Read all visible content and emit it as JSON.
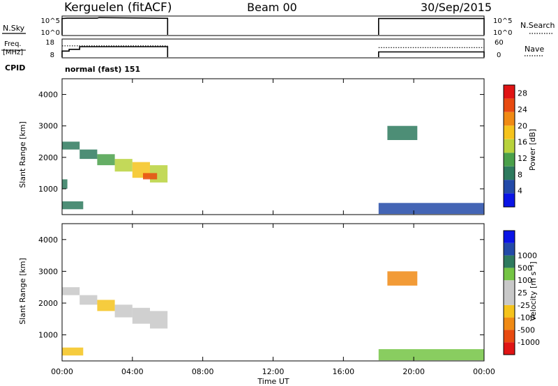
{
  "header": {
    "radar": "Kerguelen (fitACF)",
    "beam": "Beam 00",
    "date": "30/Sep/2015"
  },
  "sky_panel": {
    "left_label": "N.Sky",
    "right_label": "N.Search",
    "left_ticks": [
      "10^5",
      "10^0"
    ],
    "right_ticks": [
      "10^5",
      "10^0"
    ]
  },
  "freq_panel": {
    "left_label_1": "Freq.",
    "left_label_2": "[MHz]",
    "right_label": "Nave",
    "left_ticks": [
      "18",
      "8"
    ],
    "right_ticks": [
      "60",
      "0"
    ]
  },
  "cpid": {
    "label": "CPID",
    "value": "normal (fast) 151"
  },
  "colors": {
    "power_scale": [
      "#0a14e6",
      "#234aa8",
      "#2e7a5e",
      "#4aa04a",
      "#b8d23c",
      "#f5c31c",
      "#f08a14",
      "#e84a10",
      "#e01414"
    ],
    "velocity_scale": [
      "#e01414",
      "#e84a10",
      "#f08a14",
      "#f5c31c",
      "#c8c8c8",
      "#c8c8c8",
      "#74c444",
      "#2e7a5e",
      "#234aa8",
      "#0a14e6"
    ]
  },
  "chart_data": [
    {
      "type": "line",
      "panel": "sky",
      "x_unit": "hours UT",
      "segments": [
        {
          "x": [
            0.0,
            0.3,
            2.0,
            2.1,
            6.0
          ],
          "y": [
            4.5,
            4.6,
            4.6,
            4.75,
            4.55
          ]
        },
        {
          "x": [
            18.0,
            24.0
          ],
          "y": [
            4.5,
            4.5
          ]
        }
      ],
      "ylim": [
        0,
        5
      ]
    },
    {
      "type": "line",
      "panel": "freq",
      "x_unit": "hours UT",
      "series": [
        {
          "name": "",
          "segments": [
            {
              "x": [
                0.0,
                0.4,
                0.4,
                1.0,
                1.0,
                6.0
              ],
              "y": [
                11.5,
                11.5,
                12.5,
                12.5,
                14.0,
                14.0
              ]
            },
            {
              "x": [
                18.0,
                24.0
              ],
              "y": [
                11.0,
                11.0
              ]
            }
          ]
        },
        {
          "name": "",
          "style": "dotted",
          "segments": [
            {
              "x": [
                0.0,
                6.0
              ],
              "y": [
                14.5,
                14.5
              ]
            },
            {
              "x": [
                18.0,
                24.0
              ],
              "y": [
                13.5,
                13.5
              ]
            }
          ]
        }
      ],
      "ylim": [
        8,
        18
      ]
    },
    {
      "type": "heatmap",
      "panel": "power",
      "ylabel": "Slant Range [km]",
      "yticks": [
        "1000",
        "2000",
        "3000",
        "4000"
      ],
      "ylim": [
        180,
        4500
      ],
      "colorbar_label": "Power [dB]",
      "colorbar_ticks": [
        "4",
        "8",
        "12",
        "16",
        "20",
        "24",
        "28"
      ],
      "colorbar_range": [
        0,
        30
      ],
      "regions": [
        {
          "t": [
            0.0,
            1.0
          ],
          "r": [
            2250,
            2500
          ],
          "v": 7
        },
        {
          "t": [
            1.0,
            2.0
          ],
          "r": [
            1950,
            2250
          ],
          "v": 9
        },
        {
          "t": [
            2.0,
            3.0
          ],
          "r": [
            1750,
            2100
          ],
          "v": 12
        },
        {
          "t": [
            3.0,
            4.0
          ],
          "r": [
            1550,
            1950
          ],
          "v": 14
        },
        {
          "t": [
            4.0,
            5.0
          ],
          "r": [
            1350,
            1850
          ],
          "v": 17
        },
        {
          "t": [
            5.0,
            6.0
          ],
          "r": [
            1200,
            1750
          ],
          "v": 15
        },
        {
          "t": [
            4.6,
            5.4
          ],
          "r": [
            1300,
            1500
          ],
          "v": 25
        },
        {
          "t": [
            0.0,
            1.2
          ],
          "r": [
            350,
            600
          ],
          "v": 7
        },
        {
          "t": [
            0.0,
            0.3
          ],
          "r": [
            1000,
            1300
          ],
          "v": 8
        },
        {
          "t": [
            18.0,
            24.0
          ],
          "r": [
            200,
            550
          ],
          "v": 6
        },
        {
          "t": [
            18.5,
            20.2
          ],
          "r": [
            2550,
            3000
          ],
          "v": 8
        }
      ]
    },
    {
      "type": "heatmap",
      "panel": "velocity",
      "ylabel": "Slant Range [km]",
      "yticks": [
        "1000",
        "2000",
        "3000",
        "4000"
      ],
      "ylim": [
        180,
        4500
      ],
      "colorbar_label": "Velocity [m s⁻¹]",
      "colorbar_ticks": [
        "-1000",
        "-500",
        "-100",
        "-25",
        "25",
        "100",
        "500",
        "1000"
      ],
      "regions": [
        {
          "t": [
            0.0,
            1.0
          ],
          "r": [
            2250,
            2500
          ],
          "v": 0
        },
        {
          "t": [
            1.0,
            2.0
          ],
          "r": [
            1950,
            2250
          ],
          "v": -20
        },
        {
          "t": [
            2.0,
            3.0
          ],
          "r": [
            1750,
            2100
          ],
          "v": -40
        },
        {
          "t": [
            3.0,
            4.0
          ],
          "r": [
            1550,
            1950
          ],
          "v": 0
        },
        {
          "t": [
            4.0,
            5.0
          ],
          "r": [
            1350,
            1850
          ],
          "v": 0
        },
        {
          "t": [
            5.0,
            6.0
          ],
          "r": [
            1200,
            1750
          ],
          "v": 0
        },
        {
          "t": [
            0.0,
            1.2
          ],
          "r": [
            350,
            600
          ],
          "v": -60
        },
        {
          "t": [
            18.0,
            24.0
          ],
          "r": [
            200,
            550
          ],
          "v": 80
        },
        {
          "t": [
            18.5,
            20.2
          ],
          "r": [
            2550,
            3000
          ],
          "v": -200
        }
      ]
    }
  ],
  "x_axis": {
    "label": "Time UT",
    "ticks": [
      "00:00",
      "04:00",
      "08:00",
      "12:00",
      "16:00",
      "20:00",
      "00:00"
    ],
    "xlim": [
      0,
      24
    ]
  }
}
